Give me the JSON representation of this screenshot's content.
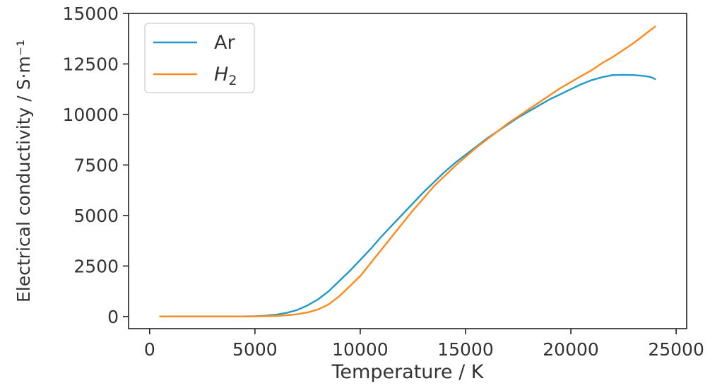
{
  "chart_data": {
    "type": "line",
    "xlabel": "Temperature / K",
    "ylabel": "Electrical conductivity / S·m⁻¹",
    "xlim": [
      -1000,
      25500
    ],
    "ylim": [
      -600,
      15000
    ],
    "xticks": [
      0,
      5000,
      10000,
      15000,
      20000,
      25000
    ],
    "yticks": [
      0,
      2500,
      5000,
      7500,
      10000,
      12500,
      15000
    ],
    "legend_position": "top-left",
    "grid": false,
    "series": [
      {
        "name": "Ar",
        "color": "#1f9ac9",
        "x": [
          500,
          1000,
          2000,
          3000,
          4000,
          5000,
          5500,
          6000,
          6500,
          7000,
          7500,
          8000,
          8500,
          9000,
          9500,
          10000,
          10500,
          11000,
          11500,
          12000,
          12500,
          13000,
          13500,
          14000,
          14500,
          15000,
          15500,
          16000,
          16500,
          17000,
          17500,
          18000,
          18500,
          19000,
          19500,
          20000,
          20500,
          21000,
          21500,
          22000,
          22500,
          23000,
          23500,
          23800,
          24000
        ],
        "values": [
          0,
          0,
          0,
          0,
          0,
          15,
          40,
          90,
          180,
          320,
          550,
          850,
          1250,
          1750,
          2250,
          2800,
          3350,
          3950,
          4500,
          5050,
          5600,
          6150,
          6650,
          7150,
          7600,
          8000,
          8400,
          8800,
          9150,
          9500,
          9850,
          10150,
          10450,
          10750,
          11000,
          11250,
          11500,
          11700,
          11850,
          11950,
          11960,
          11950,
          11900,
          11850,
          11750
        ]
      },
      {
        "name": "H_2",
        "color": "#ff8a1c",
        "x": [
          500,
          1000,
          2000,
          3000,
          4000,
          5000,
          5500,
          6000,
          6500,
          7000,
          7500,
          8000,
          8500,
          9000,
          9500,
          10000,
          10500,
          11000,
          11500,
          12000,
          12500,
          13000,
          13500,
          14000,
          14500,
          15000,
          15500,
          16000,
          16500,
          17000,
          17500,
          18000,
          18500,
          19000,
          19500,
          20000,
          20500,
          21000,
          21500,
          22000,
          22500,
          23000,
          23500,
          24000
        ],
        "values": [
          0,
          0,
          0,
          0,
          0,
          5,
          15,
          30,
          60,
          110,
          200,
          350,
          600,
          1000,
          1500,
          2000,
          2650,
          3300,
          3950,
          4600,
          5250,
          5850,
          6450,
          6950,
          7450,
          7900,
          8350,
          8750,
          9150,
          9550,
          9900,
          10250,
          10600,
          10950,
          11300,
          11600,
          11900,
          12200,
          12550,
          12850,
          13200,
          13550,
          13950,
          14350
        ]
      }
    ]
  }
}
